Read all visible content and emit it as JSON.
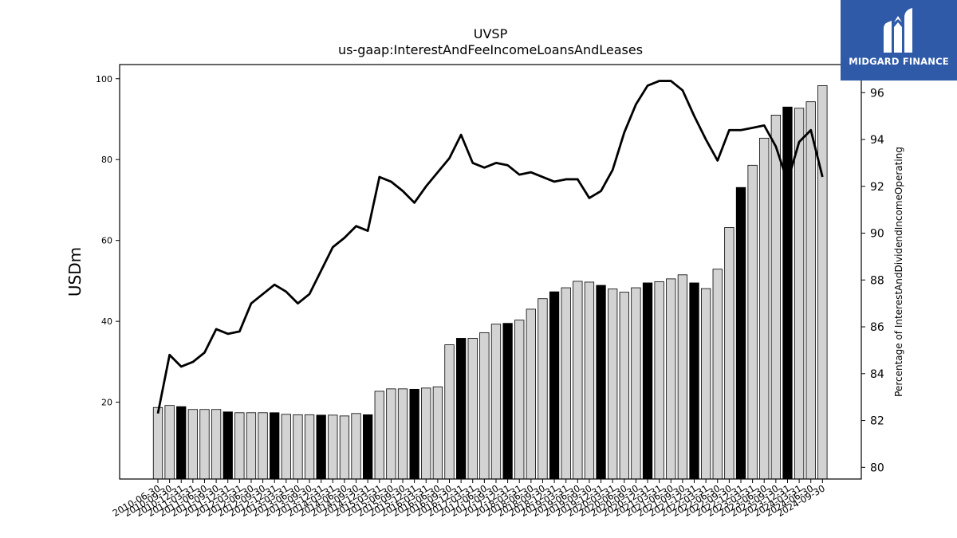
{
  "logo": {
    "text": "MIDGARD FINANCE",
    "background": "#2e5aa8"
  },
  "chart_data": {
    "type": "bar+line",
    "title": "UVSP",
    "subtitle": "us-gaap:InterestAndFeeIncomeLoansAndLeases",
    "ylabel": "USDm",
    "y2label": "Percentage of InterestAndDividendIncomeOperating",
    "ylim": [
      1,
      103.5
    ],
    "y2lim": [
      79.5,
      97.2
    ],
    "yticks": [
      20,
      40,
      60,
      80,
      100
    ],
    "y2ticks": [
      80,
      82,
      84,
      86,
      88,
      90,
      92,
      94,
      96
    ],
    "colors": {
      "bar_q4": "#000000",
      "bar_other": "#d3d3d3",
      "line": "#000000"
    },
    "categories": [
      "2010-06-30",
      "2010-09-30",
      "2010-12-31",
      "2011-03-31",
      "2011-06-30",
      "2011-09-30",
      "2011-12-31",
      "2012-03-31",
      "2012-06-30",
      "2012-09-30",
      "2012-12-31",
      "2013-03-31",
      "2013-06-30",
      "2013-09-30",
      "2013-12-31",
      "2014-03-31",
      "2014-06-30",
      "2014-09-30",
      "2014-12-31",
      "2015-03-31",
      "2015-06-30",
      "2015-09-30",
      "2015-12-31",
      "2016-03-31",
      "2016-06-30",
      "2016-09-30",
      "2016-12-31",
      "2017-03-31",
      "2017-06-30",
      "2017-09-30",
      "2017-12-31",
      "2018-03-31",
      "2018-06-30",
      "2018-09-30",
      "2018-12-31",
      "2019-03-31",
      "2019-06-30",
      "2019-09-30",
      "2019-12-31",
      "2020-03-31",
      "2020-06-30",
      "2020-09-30",
      "2020-12-31",
      "2021-03-31",
      "2021-06-30",
      "2021-09-30",
      "2021-12-31",
      "2022-03-31",
      "2022-06-30",
      "2022-09-30",
      "2022-12-31",
      "2023-03-31",
      "2023-06-30",
      "2023-09-30",
      "2023-12-31",
      "2024-03-31",
      "2024-06-30",
      "2024-09-30"
    ],
    "series": [
      {
        "type": "bar",
        "values": [
          18.7,
          19.2,
          18.9,
          18.2,
          18.2,
          18.2,
          17.6,
          17.4,
          17.4,
          17.4,
          17.4,
          17.0,
          16.9,
          16.9,
          16.8,
          16.8,
          16.6,
          17.2,
          16.9,
          22.7,
          23.3,
          23.3,
          23.2,
          23.5,
          23.8,
          34.2,
          35.8,
          35.8,
          37.2,
          39.3,
          39.5,
          40.3,
          43.0,
          45.6,
          47.3,
          48.3,
          49.9,
          49.7,
          48.9,
          48.0,
          47.2,
          48.3,
          49.5,
          49.8,
          50.5,
          51.5,
          49.5,
          48.1,
          52.9,
          63.2,
          73.1,
          78.6,
          85.3,
          91.0,
          93.0,
          92.7,
          94.3,
          98.3
        ]
      },
      {
        "type": "line",
        "values": [
          82.3,
          84.8,
          84.3,
          84.5,
          84.9,
          85.9,
          85.7,
          85.8,
          87.0,
          87.4,
          87.8,
          87.5,
          87.0,
          87.4,
          88.4,
          89.4,
          89.8,
          90.3,
          90.1,
          92.4,
          92.2,
          91.8,
          91.3,
          92.0,
          92.6,
          93.2,
          94.2,
          93.0,
          92.8,
          93.0,
          92.9,
          92.5,
          92.6,
          92.4,
          92.2,
          92.3,
          92.3,
          91.5,
          91.8,
          92.7,
          94.3,
          95.5,
          96.3,
          96.5,
          96.5,
          96.1,
          95.0,
          94.0,
          93.1,
          94.4,
          94.4,
          94.5,
          94.6,
          93.7,
          92.2,
          93.9,
          94.4,
          92.4
        ]
      }
    ]
  }
}
